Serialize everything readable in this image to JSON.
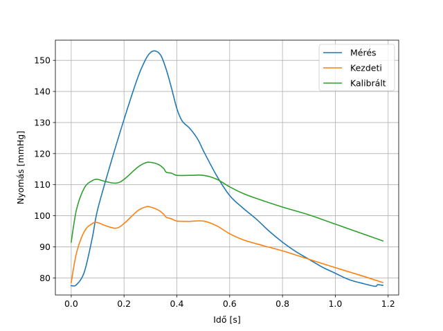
{
  "chart_data": {
    "type": "line",
    "xlabel": "Idő [s]",
    "ylabel": "Nyomás [mmHg]",
    "xlim": [
      -0.06,
      1.24
    ],
    "ylim": [
      74.5,
      156.5
    ],
    "xticks": [
      0.0,
      0.2,
      0.4,
      0.6,
      0.8,
      1.0,
      1.2
    ],
    "xtick_labels": [
      "0.0",
      "0.2",
      "0.4",
      "0.6",
      "0.8",
      "1.0",
      "1.2"
    ],
    "yticks": [
      80,
      90,
      100,
      110,
      120,
      130,
      140,
      150
    ],
    "ytick_labels": [
      "80",
      "90",
      "100",
      "110",
      "120",
      "130",
      "140",
      "150"
    ],
    "grid": true,
    "legend_position": "top-right",
    "series": [
      {
        "name": "Mérés",
        "color": "#1f77b4",
        "x": [
          0.0,
          0.02,
          0.05,
          0.08,
          0.1,
          0.15,
          0.2,
          0.25,
          0.28,
          0.3,
          0.32,
          0.34,
          0.36,
          0.38,
          0.4,
          0.42,
          0.45,
          0.48,
          0.5,
          0.55,
          0.6,
          0.65,
          0.7,
          0.75,
          0.8,
          0.85,
          0.9,
          0.95,
          1.0,
          1.05,
          1.1,
          1.15,
          1.16,
          1.18
        ],
        "y": [
          77.5,
          77.8,
          82.0,
          93.0,
          102.0,
          117.0,
          131.0,
          144.0,
          150.0,
          152.5,
          153.0,
          151.5,
          147.0,
          141.0,
          134.5,
          130.5,
          128.0,
          124.5,
          121.0,
          113.0,
          106.5,
          102.5,
          99.0,
          95.0,
          91.5,
          88.5,
          86.0,
          83.5,
          81.5,
          79.5,
          78.3,
          77.3,
          77.8,
          77.6
        ]
      },
      {
        "name": "Kezdeti",
        "color": "#ff7f0e",
        "x": [
          0.0,
          0.02,
          0.05,
          0.08,
          0.1,
          0.13,
          0.17,
          0.2,
          0.25,
          0.28,
          0.3,
          0.33,
          0.35,
          0.36,
          0.38,
          0.4,
          0.45,
          0.5,
          0.55,
          0.6,
          0.65,
          0.7,
          0.8,
          0.9,
          1.0,
          1.1,
          1.18
        ],
        "y": [
          78.5,
          88.0,
          95.0,
          97.5,
          97.8,
          96.8,
          96.0,
          97.5,
          101.5,
          102.8,
          102.8,
          101.8,
          100.5,
          99.5,
          99.0,
          98.3,
          98.2,
          98.3,
          96.8,
          94.2,
          92.3,
          91.0,
          88.7,
          86.0,
          83.3,
          80.7,
          78.5
        ]
      },
      {
        "name": "Kalibrált",
        "color": "#2ca02c",
        "x": [
          0.0,
          0.02,
          0.05,
          0.08,
          0.1,
          0.13,
          0.17,
          0.2,
          0.25,
          0.28,
          0.3,
          0.33,
          0.35,
          0.36,
          0.38,
          0.4,
          0.45,
          0.5,
          0.55,
          0.6,
          0.65,
          0.7,
          0.8,
          0.9,
          1.0,
          1.1,
          1.18
        ],
        "y": [
          91.5,
          102.0,
          109.0,
          111.3,
          111.7,
          111.0,
          110.5,
          111.7,
          115.5,
          117.0,
          117.2,
          116.5,
          115.2,
          114.0,
          113.7,
          113.0,
          113.0,
          113.0,
          111.8,
          109.3,
          107.2,
          105.6,
          102.8,
          100.3,
          97.3,
          94.3,
          91.9
        ]
      }
    ]
  }
}
